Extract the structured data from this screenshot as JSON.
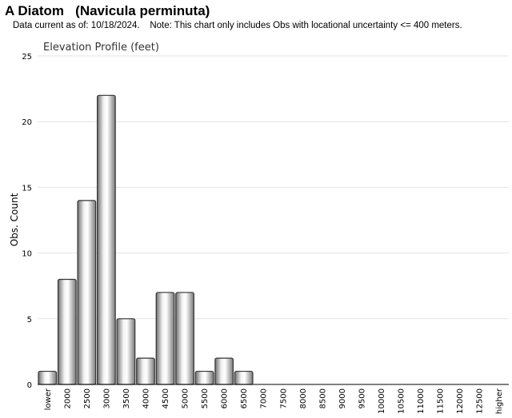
{
  "header": {
    "title": "A Diatom   (Navicula perminuta)",
    "note": "Data current as of: 10/18/2024.    Note: This chart only includes Obs with locational uncertainty <= 400 meters."
  },
  "chart_data": {
    "type": "bar",
    "title": "Elevation Profile (feet)",
    "xlabel": "",
    "ylabel": "Obs. Count",
    "ylim": [
      0,
      25
    ],
    "yticks": [
      0,
      5,
      10,
      15,
      20,
      25
    ],
    "grid": true,
    "categories": [
      "lower",
      "2000",
      "2500",
      "3000",
      "3500",
      "4000",
      "4500",
      "5000",
      "5500",
      "6000",
      "6500",
      "7000",
      "7500",
      "8000",
      "8500",
      "9000",
      "9500",
      "10000",
      "10500",
      "11000",
      "11500",
      "12000",
      "12500",
      "higher"
    ],
    "values": [
      1,
      8,
      14,
      22,
      5,
      2,
      7,
      7,
      1,
      2,
      1,
      0,
      0,
      0,
      0,
      0,
      0,
      0,
      0,
      0,
      0,
      0,
      0,
      0
    ],
    "bar_color": "#b0b0b0"
  }
}
